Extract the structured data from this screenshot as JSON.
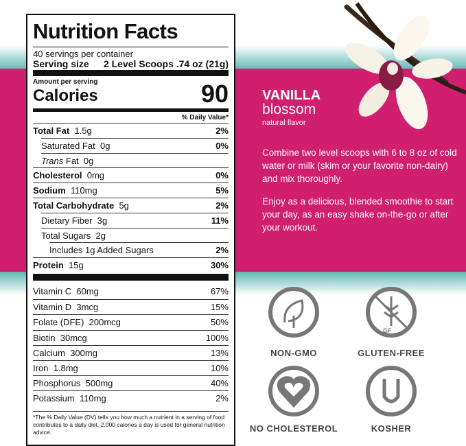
{
  "label": {
    "title": "Nutrition Facts",
    "servings": "40 servings per container",
    "serving_size_label": "Serving size",
    "serving_size_value": "2 Level Scoops .74 oz (21g)",
    "amount_per_serving": "Amount per serving",
    "calories_label": "Calories",
    "calories_value": "90",
    "dv_header": "% Daily Value*",
    "rows": [
      {
        "label": "Total Fat",
        "amount": "1.5g",
        "dv": "2%"
      },
      {
        "label": "Saturated Fat",
        "amount": "0g",
        "dv": "0%"
      },
      {
        "label_italic": "Trans",
        "label": "Fat",
        "amount": "0g"
      },
      {
        "label": "Cholesterol",
        "amount": "0mg",
        "dv": "0%"
      },
      {
        "label": "Sodium",
        "amount": "110mg",
        "dv": "5%"
      },
      {
        "label": "Total Carbohydrate",
        "amount": "5g",
        "dv": "2%"
      },
      {
        "label": "Dietary Fiber",
        "amount": "3g",
        "dv": "11%"
      },
      {
        "label": "Total Sugars",
        "amount": "2g"
      },
      {
        "label": "Includes 1g Added Sugars",
        "dv": "2%"
      },
      {
        "label": "Protein",
        "amount": "15g",
        "dv": "30%"
      }
    ],
    "vitamins": [
      {
        "label": "Vitamin C",
        "amount": "60mg",
        "dv": "67%"
      },
      {
        "label": "Vitamin D",
        "amount": "3mcg",
        "dv": "15%"
      },
      {
        "label": "Folate (DFE)",
        "amount": "200mcg",
        "dv": "50%"
      },
      {
        "label": "Biotin",
        "amount": "30mcg",
        "dv": "100%"
      },
      {
        "label": "Calcium",
        "amount": "300mg",
        "dv": "13%"
      },
      {
        "label": "Iron",
        "amount": "1.8mg",
        "dv": "10%"
      },
      {
        "label": "Phosphorus",
        "amount": "500mg",
        "dv": "40%"
      },
      {
        "label": "Potassium",
        "amount": "110mg",
        "dv": "2%"
      }
    ],
    "footnote": "*The % Daily Value (DV) tells you how much a nutrient in a serving of food contributes to a daily diet. 2,000 calories a day is used for general nutrition advice."
  },
  "product": {
    "flavor_line1": "VANILLA",
    "flavor_line2": "blossom",
    "flavor_note": "natural flavor",
    "paragraphs": [
      "Combine two level scoops with 6 to 8 oz of cold water or milk (skim or your favorite non-dairy) and mix thoroughly.",
      "Enjoy as a delicious, blended smoothie to start your day, as an easy shake on-the-go or after your workout."
    ]
  },
  "badges": [
    {
      "label": "NON-GMO"
    },
    {
      "label": "GLUTEN-FREE",
      "icon_text": "GF"
    },
    {
      "label": "NO CHOLESTEROL"
    },
    {
      "label": "KOSHER"
    }
  ]
}
